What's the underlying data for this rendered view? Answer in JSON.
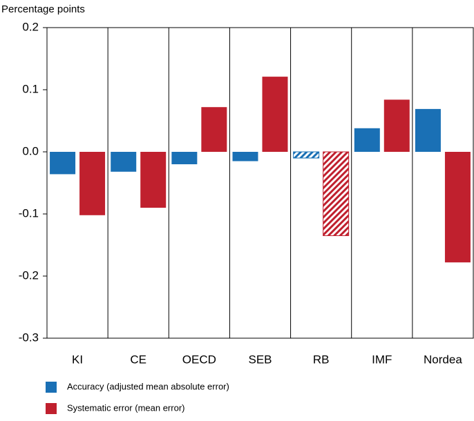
{
  "chart_data": {
    "type": "bar",
    "y_label": "Percentage points",
    "categories": [
      "KI",
      "CE",
      "OECD",
      "SEB",
      "RB",
      "IMF",
      "Nordea"
    ],
    "series": [
      {
        "name": "Accuracy (adjusted mean absolute error)",
        "color": "#1a70b5",
        "values": [
          -0.036,
          -0.032,
          -0.02,
          -0.015,
          -0.01,
          0.038,
          0.069
        ]
      },
      {
        "name": "Systematic error (mean error)",
        "color": "#c0202e",
        "values": [
          -0.102,
          -0.09,
          0.072,
          0.121,
          -0.135,
          0.084,
          -0.178
        ]
      }
    ],
    "hatched": [
      false,
      false,
      false,
      false,
      true,
      false,
      false
    ],
    "ylim": [
      -0.3,
      0.2
    ],
    "yticks": [
      -0.3,
      -0.2,
      -0.1,
      {
        "value": 0,
        "label": "0.0"
      },
      0.1,
      0.2
    ],
    "legend": "bottom"
  }
}
